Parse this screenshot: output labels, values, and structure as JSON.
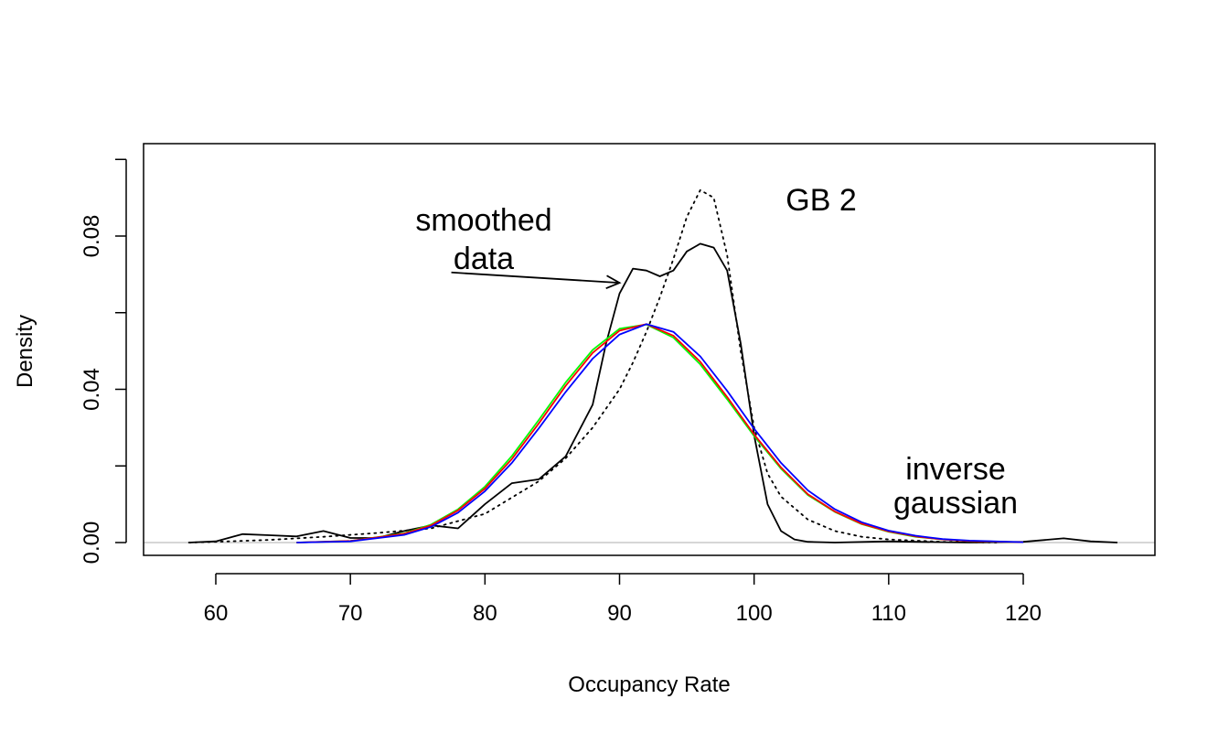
{
  "chart_data": {
    "type": "line",
    "title": "",
    "xlabel": "Occupancy Rate",
    "ylabel": "Density",
    "xlim": [
      55,
      129
    ],
    "ylim": [
      -0.004,
      0.104
    ],
    "x_ticks": [
      60,
      70,
      80,
      90,
      100,
      110,
      120
    ],
    "y_ticks": [
      0,
      0.02,
      0.04,
      0.06,
      0.08,
      0.1
    ],
    "y_tick_labels": [
      {
        "value": 0,
        "label": "0.00"
      },
      {
        "value": 0.04,
        "label": "0.04"
      },
      {
        "value": 0.08,
        "label": "0.08"
      }
    ],
    "grid": false,
    "baseline": {
      "y": 0,
      "color": "#bebebe"
    },
    "annotations": {
      "smoothed": {
        "lines": [
          "smoothed",
          "data"
        ],
        "arrow_from": [
          77.5,
          0.0705
        ],
        "arrow_to": [
          90,
          0.0678
        ]
      },
      "panel": "GB 2",
      "inverse": {
        "lines": [
          "inverse",
          "gaussian"
        ]
      }
    },
    "series": [
      {
        "style": "dotted",
        "color": "#000000",
        "x": [
          58,
          60,
          64,
          68,
          72,
          76,
          80,
          84,
          86,
          88,
          90,
          91,
          92,
          93,
          94,
          95,
          96,
          97,
          98,
          99,
          100,
          101,
          102,
          104,
          106,
          108,
          110,
          114,
          118
        ],
        "y": [
          0,
          0.0002,
          0.0007,
          0.0015,
          0.0025,
          0.0037,
          0.0075,
          0.016,
          0.022,
          0.03,
          0.04,
          0.047,
          0.055,
          0.064,
          0.074,
          0.085,
          0.092,
          0.09,
          0.075,
          0.05,
          0.03,
          0.018,
          0.012,
          0.006,
          0.003,
          0.0015,
          0.0008,
          0.0002,
          0
        ]
      },
      {
        "style": "solid",
        "color": "#000000",
        "x": [
          58,
          60,
          62,
          64,
          66,
          68,
          70,
          72,
          74,
          76,
          78,
          80,
          82,
          84,
          86,
          88,
          89,
          90,
          91,
          92,
          93,
          94,
          95,
          96,
          97,
          98,
          99,
          100,
          101,
          102,
          103,
          104,
          106,
          110,
          112,
          116,
          120,
          123,
          125,
          127
        ],
        "y": [
          0,
          0.0003,
          0.0022,
          0.0019,
          0.0016,
          0.003,
          0.0012,
          0.0012,
          0.003,
          0.0045,
          0.0037,
          0.01,
          0.0155,
          0.0165,
          0.0225,
          0.036,
          0.052,
          0.065,
          0.0715,
          0.071,
          0.0695,
          0.071,
          0.076,
          0.078,
          0.077,
          0.071,
          0.052,
          0.028,
          0.01,
          0.003,
          0.0008,
          0.0002,
          0,
          0.0003,
          0.0002,
          0,
          0.0002,
          0.0011,
          0.0003,
          0
        ]
      },
      {
        "style": "solid",
        "color": "#00ff00",
        "x": [
          66,
          70,
          74,
          76,
          78,
          80,
          82,
          84,
          86,
          88,
          90,
          92,
          94,
          96,
          98,
          100,
          102,
          104,
          106,
          108,
          110,
          112,
          114,
          116,
          120
        ],
        "y": [
          0,
          0.0004,
          0.0024,
          0.0047,
          0.0087,
          0.0146,
          0.0226,
          0.032,
          0.0418,
          0.0503,
          0.0558,
          0.0569,
          0.0535,
          0.0465,
          0.0374,
          0.0278,
          0.0193,
          0.0124,
          0.008,
          0.0048,
          0.0028,
          0.0015,
          0.0008,
          0.0004,
          0.0001
        ]
      },
      {
        "style": "solid",
        "color": "#ff0000",
        "x": [
          66,
          70,
          74,
          76,
          78,
          80,
          82,
          84,
          86,
          88,
          90,
          92,
          94,
          96,
          98,
          100,
          102,
          104,
          106,
          108,
          110,
          112,
          114,
          116,
          120
        ],
        "y": [
          0,
          0.0004,
          0.0023,
          0.0045,
          0.0084,
          0.0141,
          0.0218,
          0.0311,
          0.0409,
          0.0495,
          0.0553,
          0.057,
          0.054,
          0.0472,
          0.038,
          0.0282,
          0.0196,
          0.0126,
          0.0081,
          0.0049,
          0.0029,
          0.0016,
          0.0008,
          0.0004,
          0.0001
        ]
      },
      {
        "style": "solid",
        "color": "#0000ff",
        "x": [
          66,
          70,
          74,
          76,
          78,
          80,
          82,
          84,
          86,
          88,
          90,
          92,
          94,
          96,
          98,
          100,
          102,
          104,
          106,
          108,
          110,
          112,
          114,
          116,
          120
        ],
        "y": [
          0,
          0.0003,
          0.002,
          0.0041,
          0.0078,
          0.0134,
          0.0208,
          0.0298,
          0.0393,
          0.048,
          0.0543,
          0.057,
          0.055,
          0.0486,
          0.0396,
          0.0297,
          0.0208,
          0.0136,
          0.0087,
          0.0053,
          0.0031,
          0.0018,
          0.0009,
          0.0005,
          0.0001
        ]
      }
    ]
  }
}
